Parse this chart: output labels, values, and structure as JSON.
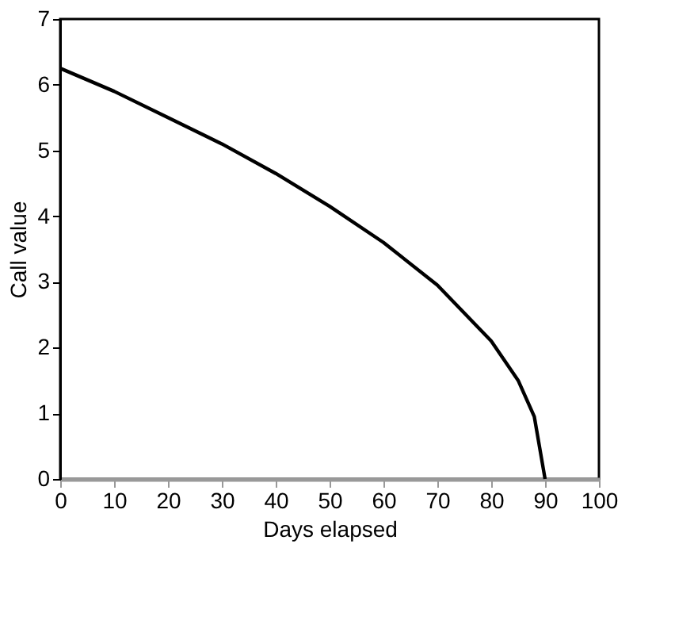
{
  "chart_data": {
    "type": "line",
    "xlabel": "Days elapsed",
    "ylabel": "Call value",
    "x": [
      0,
      10,
      20,
      30,
      40,
      50,
      60,
      70,
      80,
      85,
      88,
      90
    ],
    "series": [
      {
        "color": "#000000",
        "values": [
          6.25,
          5.9,
          5.5,
          5.1,
          4.65,
          4.15,
          3.6,
          2.95,
          2.1,
          1.5,
          0.95,
          0
        ]
      }
    ],
    "xlim": [
      0,
      100
    ],
    "xticks": [
      0,
      10,
      20,
      30,
      40,
      50,
      60,
      70,
      80,
      90,
      100
    ],
    "ylim": [
      0,
      7
    ],
    "yticks": [
      0,
      1,
      2,
      3,
      4,
      5,
      6,
      7
    ],
    "grid": false,
    "marker": "none",
    "line_style": "solid"
  }
}
